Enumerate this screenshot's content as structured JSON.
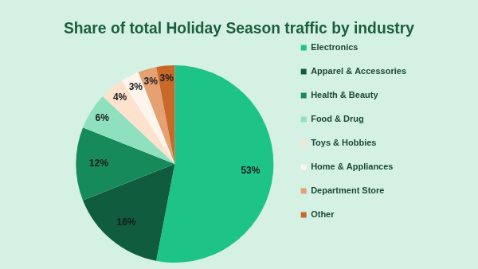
{
  "chart_data": {
    "type": "pie",
    "title": "Share of total Holiday Season traffic by industry",
    "categories": [
      "Electronics",
      "Apparel & Accessories",
      "Health & Beauty",
      "Food & Drug",
      "Toys & Hobbies",
      "Home & Appliances",
      "Department Store",
      "Other"
    ],
    "values": [
      53,
      16,
      12,
      6,
      4,
      3,
      3,
      3
    ],
    "value_labels": [
      "53%",
      "16%",
      "12%",
      "6%",
      "4%",
      "3%",
      "3%",
      "3%"
    ],
    "colors": [
      "#1ec487",
      "#0f5c3e",
      "#178a5b",
      "#8fe0bf",
      "#fde2cd",
      "#fdf5ec",
      "#e6a172",
      "#c8692a"
    ],
    "data_labels": true,
    "legend": "right"
  }
}
